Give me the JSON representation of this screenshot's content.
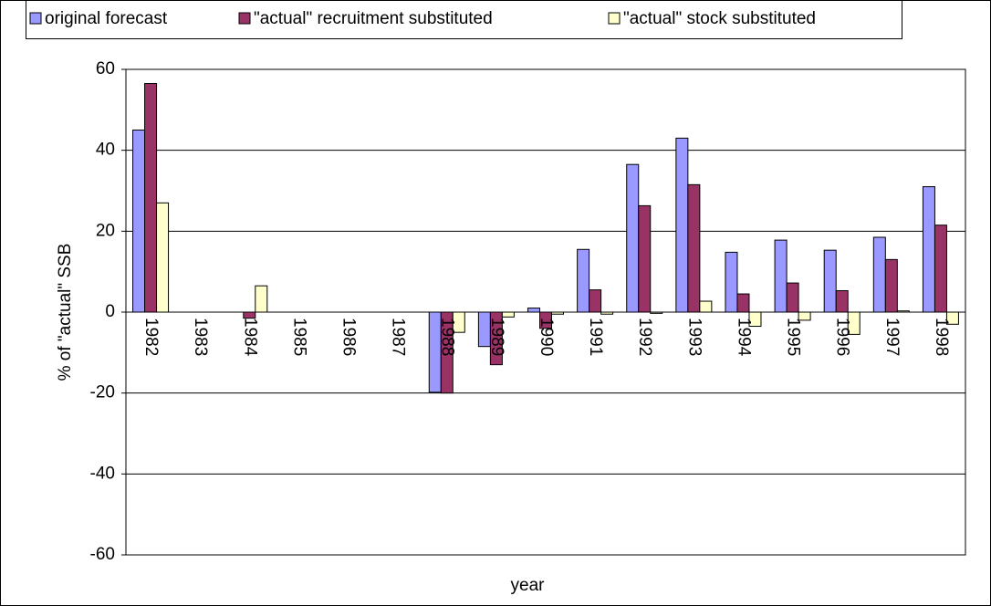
{
  "chart_data": {
    "type": "bar",
    "x_label": "year",
    "y_label": "% of \"actual\" SSB",
    "categories": [
      "1982",
      "1983",
      "1984",
      "1985",
      "1986",
      "1987",
      "1988",
      "1989",
      "1990",
      "1991",
      "1992",
      "1993",
      "1994",
      "1995",
      "1996",
      "1997",
      "1998"
    ],
    "series": [
      {
        "name": "original forecast",
        "color": "#9999ff",
        "values": [
          45,
          null,
          0,
          null,
          null,
          null,
          -19.8,
          -8.5,
          1,
          15.5,
          36.5,
          43,
          14.8,
          17.8,
          15.3,
          18.5,
          31
        ]
      },
      {
        "name": "\"actual\" recruitment substituted",
        "color": "#993366",
        "values": [
          56.5,
          null,
          -1.5,
          null,
          null,
          null,
          -20,
          -13,
          -4,
          5.5,
          26.3,
          31.5,
          4.5,
          7.2,
          5.3,
          13,
          21.5
        ]
      },
      {
        "name": "\"actual\" stock substituted",
        "color": "#ffffcc",
        "values": [
          27,
          null,
          6.5,
          null,
          null,
          null,
          -5,
          -1.2,
          -0.5,
          -0.5,
          -0.3,
          2.7,
          -3.5,
          -2,
          -5.5,
          0.3,
          -3
        ]
      }
    ],
    "ylim": [
      -60,
      60
    ],
    "yticks": [
      -60,
      -40,
      -20,
      0,
      20,
      40,
      60
    ],
    "grid": true
  }
}
